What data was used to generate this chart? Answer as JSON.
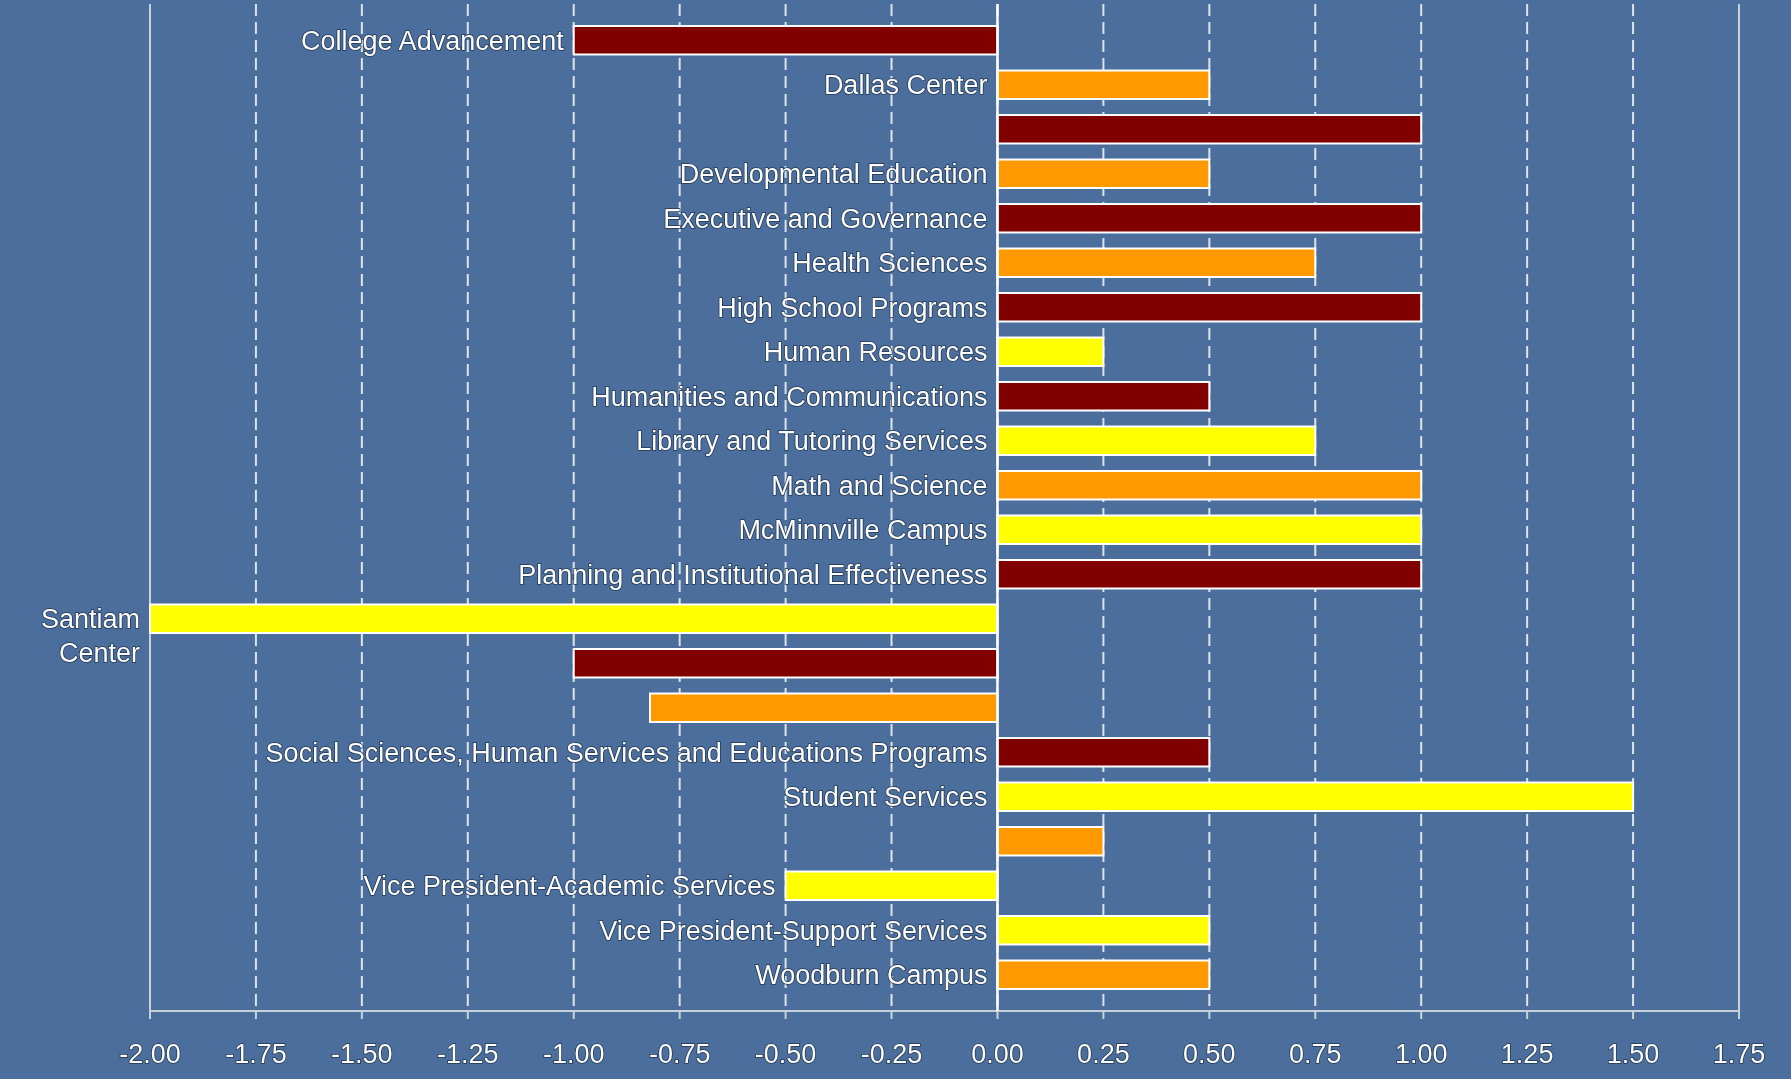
{
  "chart_data": {
    "type": "bar",
    "orientation": "horizontal",
    "categories": [
      "College Advancement",
      "Dallas Center",
      null,
      "Developmental Education",
      "Executive and Governance",
      "Health Sciences",
      "High School Programs",
      "Human Resources",
      "Humanities and Communications",
      "Library and Tutoring Services",
      "Math and Science",
      "McMinnville Campus",
      "Planning and Institutional Effectiveness",
      "Santiam Center",
      null,
      null,
      "Social Sciences, Human Services and Educations Programs",
      "Student Services",
      null,
      "Vice President-Academic Services",
      "Vice President-Support Services",
      "Woodburn Campus"
    ],
    "values": [
      -1.0,
      0.5,
      1.0,
      0.5,
      1.0,
      0.75,
      1.0,
      0.25,
      0.5,
      0.75,
      1.0,
      1.0,
      1.0,
      -2.0,
      -1.0,
      -0.82,
      0.5,
      1.5,
      0.25,
      -0.5,
      0.5,
      0.5
    ],
    "colors": [
      "#800000",
      "#ff9900",
      "#800000",
      "#ff9900",
      "#800000",
      "#ff9900",
      "#800000",
      "#ffff00",
      "#800000",
      "#ffff00",
      "#ff9900",
      "#ffff00",
      "#800000",
      "#ffff00",
      "#800000",
      "#ff9900",
      "#800000",
      "#ffff00",
      "#ff9900",
      "#ffff00",
      "#ffff00",
      "#ff9900"
    ],
    "xlim": [
      -2,
      1.75
    ],
    "xticks": [
      {
        "value": -2,
        "label": "-2.00"
      },
      {
        "value": -1.75,
        "label": "-1.75"
      },
      {
        "value": -1.5,
        "label": "-1.50"
      },
      {
        "value": -1.25,
        "label": "-1.25"
      },
      {
        "value": -1,
        "label": "-1.00"
      },
      {
        "value": -0.75,
        "label": "-0.75"
      },
      {
        "value": -0.5,
        "label": "-0.50"
      },
      {
        "value": -0.25,
        "label": "-0.25"
      },
      {
        "value": 0,
        "label": "0.00"
      },
      {
        "value": 0.25,
        "label": "0.25"
      },
      {
        "value": 0.5,
        "label": "0.50"
      },
      {
        "value": 0.75,
        "label": "0.75"
      },
      {
        "value": 1,
        "label": "1.00"
      },
      {
        "value": 1.25,
        "label": "1.25"
      },
      {
        "value": 1.5,
        "label": "1.50"
      },
      {
        "value": 1.75,
        "label": "1.75"
      }
    ],
    "grid": "x"
  }
}
